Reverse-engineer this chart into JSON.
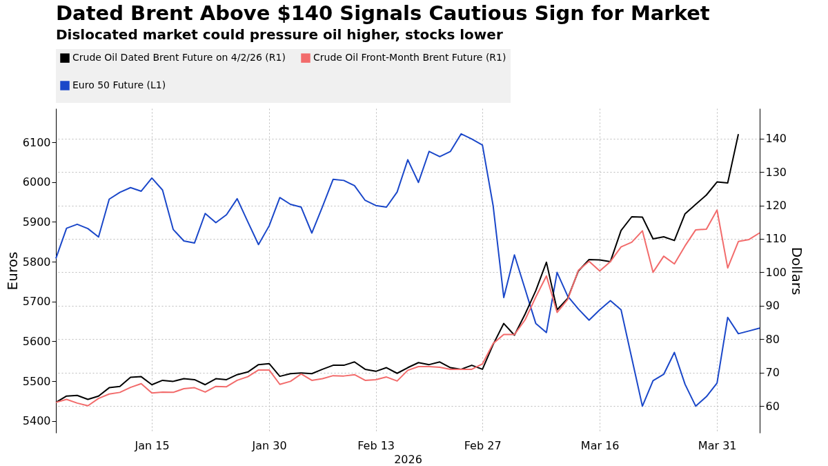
{
  "chart_data": {
    "type": "line",
    "title": "Dated Brent Above $140 Signals Cautious Sign for Market",
    "subtitle": "Dislocated market could pressure oil higher, stocks lower",
    "xlabel": "2026",
    "ylabel": "Euros",
    "y2label": "Dollars",
    "categories": [
      null,
      null,
      null,
      null,
      null,
      null,
      null,
      null,
      null,
      "Jan 15",
      null,
      null,
      null,
      null,
      null,
      null,
      null,
      null,
      null,
      null,
      "Jan 30",
      null,
      null,
      null,
      null,
      null,
      null,
      null,
      null,
      null,
      "Feb 13",
      null,
      null,
      null,
      null,
      null,
      null,
      null,
      null,
      null,
      "Feb 27",
      null,
      null,
      null,
      null,
      null,
      null,
      null,
      null,
      null,
      null,
      "Mar 16",
      null,
      null,
      null,
      null,
      null,
      null,
      null,
      null,
      null,
      null,
      "Mar 31",
      null,
      null,
      null,
      null
    ],
    "series": [
      {
        "name": "Crude Oil Dated Brent Future on 4/2/26 (R1)",
        "color": "#000000",
        "axis": "y2",
        "values": [
          61.1,
          63.0,
          63.2,
          62.0,
          63.0,
          65.5,
          65.9,
          68.6,
          68.8,
          66.4,
          67.7,
          67.4,
          68.2,
          67.9,
          66.4,
          68.2,
          67.9,
          69.4,
          70.2,
          72.4,
          72.7,
          68.9,
          69.7,
          69.9,
          69.7,
          71.0,
          72.2,
          72.2,
          73.2,
          71.0,
          70.4,
          71.5,
          69.8,
          71.5,
          73.0,
          72.4,
          73.2,
          71.5,
          71.0,
          72.2,
          71.0,
          78.4,
          84.7,
          81.2,
          87.5,
          94.5,
          103.0,
          88.8,
          92.2,
          100.4,
          103.8,
          103.7,
          103.2,
          112.5,
          116.6,
          116.5,
          110.0,
          110.6,
          109.5,
          117.5,
          120.3,
          123.1,
          127.0,
          126.7,
          141.3,
          null,
          null
        ]
      },
      {
        "name": "Crude Oil Front-Month Brent Future (R1)",
        "color": "#f26b6b",
        "axis": "y2",
        "values": [
          61.1,
          62.0,
          60.9,
          60.1,
          62.3,
          63.6,
          64.1,
          65.6,
          66.7,
          63.9,
          64.2,
          64.1,
          65.2,
          65.5,
          64.2,
          65.9,
          65.8,
          67.7,
          68.8,
          70.8,
          70.8,
          66.5,
          67.4,
          69.6,
          67.7,
          68.2,
          69.1,
          69.0,
          69.4,
          67.7,
          67.9,
          68.7,
          67.5,
          70.7,
          71.8,
          71.8,
          71.6,
          71.0,
          71.0,
          71.0,
          72.6,
          78.7,
          81.4,
          81.4,
          85.8,
          92.6,
          98.9,
          88.0,
          91.9,
          100.6,
          103.3,
          100.4,
          103.2,
          107.6,
          109.0,
          112.4,
          100.0,
          104.8,
          102.5,
          107.9,
          112.7,
          112.9,
          118.6,
          101.3,
          109.2,
          109.8,
          111.8
        ]
      },
      {
        "name": "Euro 50 Future (L1)",
        "color": "#1a47c9",
        "axis": "y",
        "values": [
          5808,
          5884,
          5894,
          5883,
          5862,
          5957,
          5974,
          5986,
          5977,
          6010,
          5980,
          5881,
          5852,
          5847,
          5921,
          5898,
          5918,
          5958,
          5900,
          5843,
          5890,
          5961,
          5944,
          5937,
          5872,
          5938,
          6007,
          6004,
          5991,
          5954,
          5941,
          5937,
          5975,
          6056,
          5999,
          6077,
          6064,
          6077,
          6121,
          6108,
          6093,
          5941,
          5710,
          5817,
          5731,
          5645,
          5622,
          5773,
          5713,
          5681,
          5653,
          5679,
          5702,
          5679,
          5558,
          5437,
          5501,
          5517,
          5572,
          5492,
          5437,
          5461,
          5495,
          5660,
          5619,
          5626,
          5633
        ]
      }
    ],
    "ylim": [
      5370,
      6185
    ],
    "yticks": [
      5400,
      5500,
      5600,
      5700,
      5800,
      5900,
      6000,
      6100
    ],
    "y2lim": [
      52,
      149
    ],
    "y2ticks": [
      60,
      70,
      80,
      90,
      100,
      110,
      120,
      130,
      140
    ],
    "grid": true,
    "legend": "top left"
  }
}
